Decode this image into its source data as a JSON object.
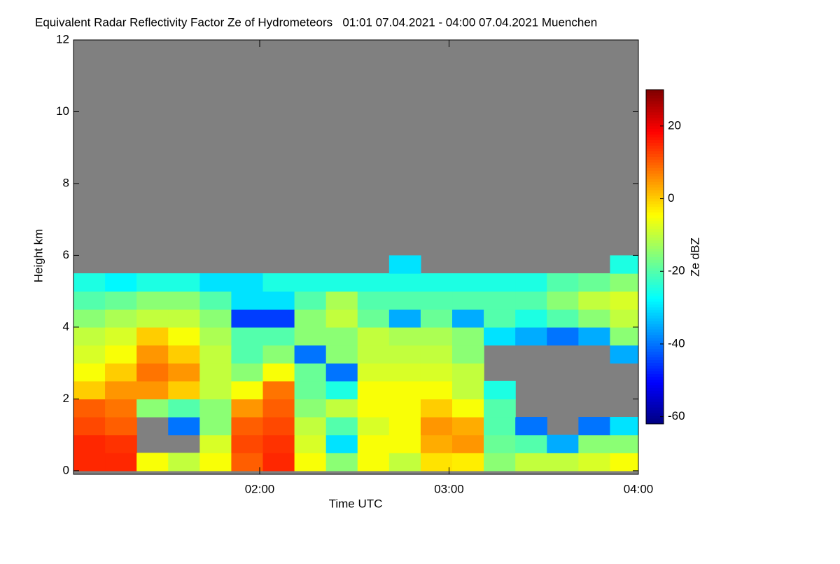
{
  "chart_data": {
    "type": "heatmap",
    "title": "Equivalent Radar Reflectivity Factor Ze of Hydrometeors   01:01 07.04.2021 - 04:00 07.04.2021 Muenchen",
    "xlabel": "Time UTC",
    "ylabel": "Height km",
    "colorbar_label": "Ze dBZ",
    "x": [
      66,
      76,
      86,
      96,
      106,
      116,
      126,
      136,
      146,
      156,
      166,
      176,
      186,
      196,
      206,
      216,
      226,
      236
    ],
    "y": [
      0.25,
      0.75,
      1.25,
      1.75,
      2.25,
      2.75,
      3.25,
      3.75,
      4.25,
      4.75,
      5.25,
      5.75
    ],
    "z": [
      [
        15,
        15,
        -5,
        -10,
        -5,
        10,
        15,
        -5,
        -15,
        -5,
        -10,
        -2,
        -3,
        -15,
        -10,
        -10,
        -8,
        -5
      ],
      [
        15,
        14,
        null,
        null,
        -8,
        12,
        14,
        -8,
        -30,
        -5,
        -5,
        3,
        5,
        -18,
        -20,
        -35,
        -15,
        -15
      ],
      [
        12,
        10,
        null,
        -40,
        -15,
        10,
        12,
        -10,
        -20,
        -8,
        -5,
        5,
        3,
        -20,
        -40,
        null,
        -40,
        -30
      ],
      [
        10,
        8,
        -15,
        -20,
        -15,
        5,
        10,
        -15,
        -10,
        -5,
        -5,
        0,
        -5,
        -20,
        null,
        null,
        null,
        null
      ],
      [
        0,
        5,
        5,
        0,
        -10,
        -5,
        8,
        -18,
        -25,
        -5,
        -5,
        -5,
        -10,
        -25,
        null,
        null,
        null,
        null
      ],
      [
        -5,
        0,
        8,
        5,
        -10,
        -15,
        -5,
        -18,
        -40,
        -8,
        -8,
        -8,
        -10,
        null,
        null,
        null,
        null,
        null
      ],
      [
        -8,
        -5,
        5,
        0,
        -10,
        -20,
        -15,
        -40,
        -15,
        -10,
        -10,
        -10,
        -15,
        null,
        null,
        null,
        null,
        -35
      ],
      [
        -10,
        -8,
        0,
        -5,
        -12,
        -20,
        -20,
        -15,
        -15,
        -10,
        -12,
        -12,
        -15,
        -30,
        -35,
        -40,
        -35,
        -15
      ],
      [
        -15,
        -12,
        -10,
        -10,
        -15,
        -45,
        -45,
        -15,
        -10,
        -18,
        -35,
        -18,
        -35,
        -20,
        -25,
        -20,
        -15,
        -10
      ],
      [
        -20,
        -18,
        -15,
        -15,
        -20,
        -30,
        -30,
        -20,
        -12,
        -20,
        -20,
        -20,
        -20,
        -20,
        -20,
        -15,
        -10,
        -8
      ],
      [
        -25,
        -28,
        -25,
        -25,
        -30,
        -30,
        -25,
        -25,
        -25,
        -25,
        -25,
        -25,
        -25,
        -25,
        -25,
        -20,
        -18,
        -15
      ],
      [
        null,
        null,
        null,
        null,
        null,
        null,
        null,
        null,
        null,
        null,
        -30,
        null,
        null,
        null,
        null,
        null,
        null,
        -25
      ]
    ],
    "xlim": [
      61,
      240
    ],
    "xticks": [
      {
        "value": 120,
        "label": "02:00"
      },
      {
        "value": 180,
        "label": "03:00"
      },
      {
        "value": 240,
        "label": "04:00"
      }
    ],
    "ylim": [
      -0.1,
      12
    ],
    "yticks": [
      0,
      2,
      4,
      6,
      8,
      10,
      12
    ],
    "clim": [
      -62,
      30
    ],
    "cticks": [
      -60,
      -40,
      -20,
      0,
      20
    ],
    "colormap": "jet",
    "missing_color": "#808080"
  }
}
